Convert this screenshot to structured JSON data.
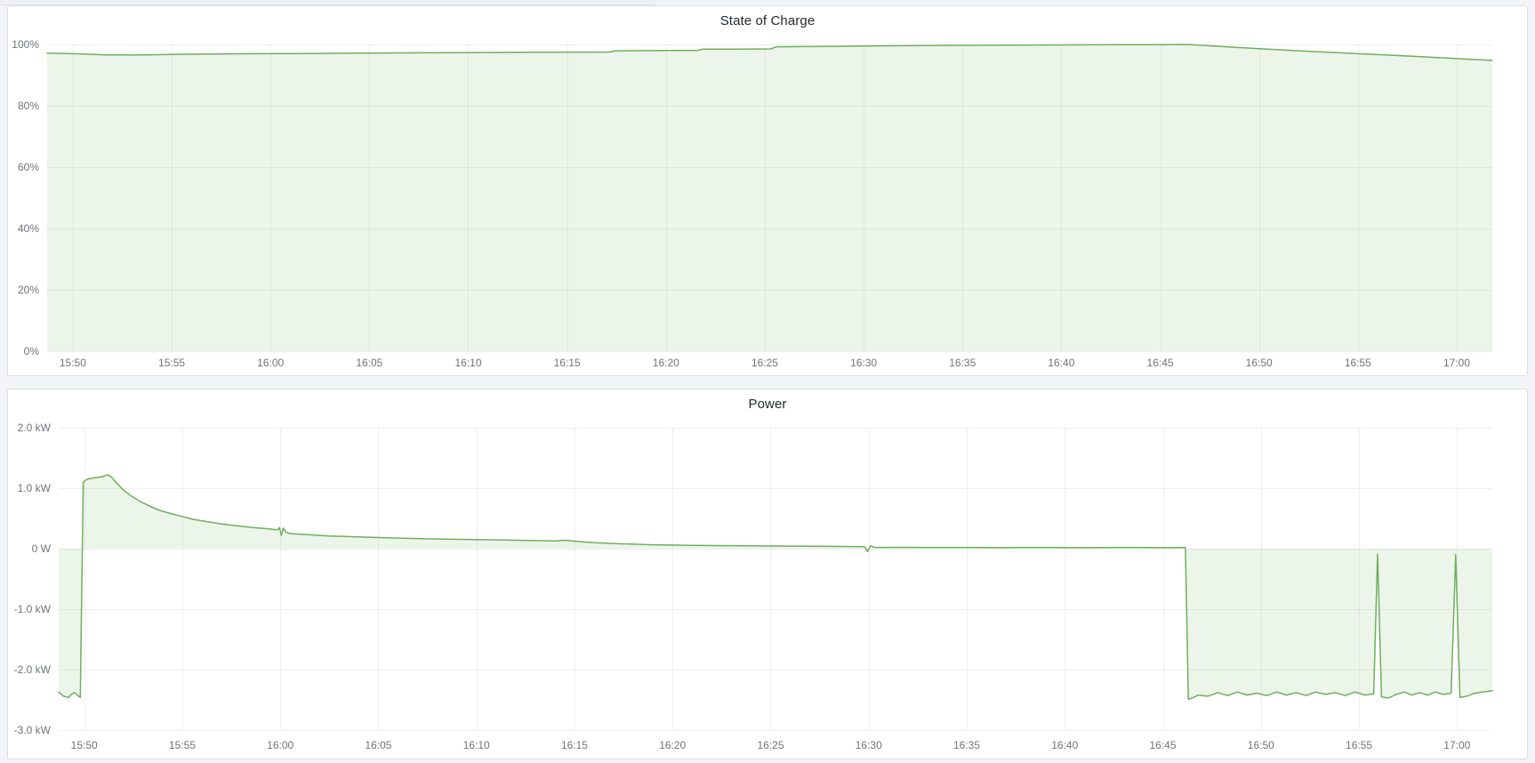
{
  "page": {
    "background": "#f3f4f8"
  },
  "panels": [
    {
      "title": "State of Charge"
    },
    {
      "title": "Power"
    }
  ],
  "chart_data": [
    {
      "type": "area",
      "title": "State of Charge",
      "xlabel": "",
      "ylabel": "",
      "unit": "%",
      "legend_position": "none",
      "grid": true,
      "line_color": "#6fae5f",
      "fill_color": "rgba(111,174,95,0.13)",
      "baseline": 0,
      "ylim": [
        0,
        100
      ],
      "y_ticks": [
        {
          "v": 100,
          "label": "100%"
        },
        {
          "v": 80,
          "label": "80%"
        },
        {
          "v": 60,
          "label": "60%"
        },
        {
          "v": 40,
          "label": "40%"
        },
        {
          "v": 20,
          "label": "20%"
        },
        {
          "v": 0,
          "label": "0%"
        }
      ],
      "x_domain_minutes": [
        3.7,
        76.8
      ],
      "x_ticks": [
        {
          "m": 5,
          "label": "15:50"
        },
        {
          "m": 10,
          "label": "15:55"
        },
        {
          "m": 15,
          "label": "16:00"
        },
        {
          "m": 20,
          "label": "16:05"
        },
        {
          "m": 25,
          "label": "16:10"
        },
        {
          "m": 30,
          "label": "16:15"
        },
        {
          "m": 35,
          "label": "16:20"
        },
        {
          "m": 40,
          "label": "16:25"
        },
        {
          "m": 45,
          "label": "16:30"
        },
        {
          "m": 50,
          "label": "16:35"
        },
        {
          "m": 55,
          "label": "16:40"
        },
        {
          "m": 60,
          "label": "16:45"
        },
        {
          "m": 65,
          "label": "16:50"
        },
        {
          "m": 70,
          "label": "16:55"
        },
        {
          "m": 75,
          "label": "17:00"
        }
      ],
      "series": [
        {
          "name": "State of Charge"
        }
      ],
      "points": [
        [
          3.7,
          97.2
        ],
        [
          5,
          97.0
        ],
        [
          5.8,
          96.8
        ],
        [
          6.8,
          96.6
        ],
        [
          8,
          96.55
        ],
        [
          9,
          96.65
        ],
        [
          10.5,
          96.8
        ],
        [
          12,
          96.9
        ],
        [
          14,
          97.0
        ],
        [
          16.5,
          97.05
        ],
        [
          19,
          97.15
        ],
        [
          21.5,
          97.25
        ],
        [
          24,
          97.3
        ],
        [
          26.5,
          97.4
        ],
        [
          28.5,
          97.45
        ],
        [
          30.5,
          97.5
        ],
        [
          32.2,
          97.55
        ],
        [
          32.45,
          97.95
        ],
        [
          34.5,
          98.0
        ],
        [
          36.6,
          98.05
        ],
        [
          36.85,
          98.45
        ],
        [
          38.5,
          98.5
        ],
        [
          40.3,
          98.55
        ],
        [
          40.6,
          99.25
        ],
        [
          42,
          99.3
        ],
        [
          43.5,
          99.4
        ],
        [
          45,
          99.5
        ],
        [
          47,
          99.6
        ],
        [
          49.5,
          99.7
        ],
        [
          52,
          99.78
        ],
        [
          55,
          99.85
        ],
        [
          58,
          99.9
        ],
        [
          60,
          99.95
        ],
        [
          61.2,
          100.0
        ],
        [
          61.6,
          99.9
        ],
        [
          63,
          99.4
        ],
        [
          65,
          98.6
        ],
        [
          67,
          97.95
        ],
        [
          69,
          97.3
        ],
        [
          71,
          96.7
        ],
        [
          73,
          96.1
        ],
        [
          75,
          95.4
        ],
        [
          76.8,
          94.8
        ]
      ]
    },
    {
      "type": "area",
      "title": "Power",
      "xlabel": "",
      "ylabel": "",
      "unit": "kW",
      "legend_position": "none",
      "grid": true,
      "line_color": "#6fae5f",
      "fill_color": "rgba(111,174,95,0.13)",
      "baseline": 0,
      "ylim": [
        -3,
        2
      ],
      "y_ticks": [
        {
          "v": 2,
          "label": "2.0 kW"
        },
        {
          "v": 1,
          "label": "1.0 kW"
        },
        {
          "v": 0,
          "label": "0 W"
        },
        {
          "v": -1,
          "label": "-1.0 kW"
        },
        {
          "v": -2,
          "label": "-2.0 kW"
        },
        {
          "v": -3,
          "label": "-3.0 kW"
        }
      ],
      "x_domain_minutes": [
        3.7,
        76.8
      ],
      "x_ticks": [
        {
          "m": 5,
          "label": "15:50"
        },
        {
          "m": 10,
          "label": "15:55"
        },
        {
          "m": 15,
          "label": "16:00"
        },
        {
          "m": 20,
          "label": "16:05"
        },
        {
          "m": 25,
          "label": "16:10"
        },
        {
          "m": 30,
          "label": "16:15"
        },
        {
          "m": 35,
          "label": "16:20"
        },
        {
          "m": 40,
          "label": "16:25"
        },
        {
          "m": 45,
          "label": "16:30"
        },
        {
          "m": 50,
          "label": "16:35"
        },
        {
          "m": 55,
          "label": "16:40"
        },
        {
          "m": 60,
          "label": "16:45"
        },
        {
          "m": 65,
          "label": "16:50"
        },
        {
          "m": 70,
          "label": "16:55"
        },
        {
          "m": 75,
          "label": "17:00"
        }
      ],
      "series": [
        {
          "name": "Power"
        }
      ],
      "points": [
        [
          3.7,
          -2.37
        ],
        [
          3.95,
          -2.44
        ],
        [
          4.2,
          -2.46
        ],
        [
          4.35,
          -2.41
        ],
        [
          4.5,
          -2.38
        ],
        [
          4.65,
          -2.42
        ],
        [
          4.8,
          -2.46
        ],
        [
          4.95,
          1.1
        ],
        [
          5.15,
          1.15
        ],
        [
          5.5,
          1.17
        ],
        [
          5.9,
          1.19
        ],
        [
          6.2,
          1.22
        ],
        [
          6.35,
          1.2
        ],
        [
          6.7,
          1.07
        ],
        [
          7.0,
          0.97
        ],
        [
          7.4,
          0.87
        ],
        [
          7.8,
          0.79
        ],
        [
          8.3,
          0.71
        ],
        [
          8.8,
          0.64
        ],
        [
          9.3,
          0.59
        ],
        [
          9.9,
          0.54
        ],
        [
          10.5,
          0.49
        ],
        [
          11.2,
          0.45
        ],
        [
          12.0,
          0.41
        ],
        [
          12.8,
          0.38
        ],
        [
          13.6,
          0.35
        ],
        [
          14.4,
          0.33
        ],
        [
          14.85,
          0.31
        ],
        [
          14.95,
          0.35
        ],
        [
          15.05,
          0.22
        ],
        [
          15.15,
          0.34
        ],
        [
          15.3,
          0.27
        ],
        [
          15.5,
          0.25
        ],
        [
          16.5,
          0.23
        ],
        [
          17.5,
          0.21
        ],
        [
          18.5,
          0.2
        ],
        [
          19.5,
          0.19
        ],
        [
          21,
          0.175
        ],
        [
          23,
          0.16
        ],
        [
          25,
          0.15
        ],
        [
          27,
          0.14
        ],
        [
          29,
          0.13
        ],
        [
          29.6,
          0.14
        ],
        [
          30.1,
          0.12
        ],
        [
          31,
          0.1
        ],
        [
          32,
          0.085
        ],
        [
          33,
          0.075
        ],
        [
          34,
          0.065
        ],
        [
          35.5,
          0.058
        ],
        [
          37,
          0.052
        ],
        [
          39,
          0.047
        ],
        [
          41,
          0.042
        ],
        [
          43,
          0.038
        ],
        [
          44.8,
          0.032
        ],
        [
          44.95,
          -0.05
        ],
        [
          45.1,
          0.05
        ],
        [
          45.3,
          0.02
        ],
        [
          46.5,
          0.022
        ],
        [
          48,
          0.02
        ],
        [
          50,
          0.02
        ],
        [
          52,
          0.019
        ],
        [
          54,
          0.02
        ],
        [
          56,
          0.018
        ],
        [
          58,
          0.02
        ],
        [
          60,
          0.019
        ],
        [
          61.15,
          0.02
        ],
        [
          61.3,
          -2.49
        ],
        [
          61.5,
          -2.47
        ],
        [
          61.8,
          -2.42
        ],
        [
          62.3,
          -2.44
        ],
        [
          62.8,
          -2.38
        ],
        [
          63.3,
          -2.43
        ],
        [
          63.8,
          -2.37
        ],
        [
          64.3,
          -2.42
        ],
        [
          64.8,
          -2.39
        ],
        [
          65.3,
          -2.43
        ],
        [
          65.8,
          -2.37
        ],
        [
          66.3,
          -2.42
        ],
        [
          66.8,
          -2.38
        ],
        [
          67.3,
          -2.43
        ],
        [
          67.8,
          -2.37
        ],
        [
          68.3,
          -2.41
        ],
        [
          68.8,
          -2.38
        ],
        [
          69.3,
          -2.43
        ],
        [
          69.8,
          -2.37
        ],
        [
          70.3,
          -2.42
        ],
        [
          70.75,
          -2.4
        ],
        [
          70.95,
          -0.09
        ],
        [
          71.15,
          -2.45
        ],
        [
          71.5,
          -2.47
        ],
        [
          71.9,
          -2.41
        ],
        [
          72.3,
          -2.37
        ],
        [
          72.7,
          -2.42
        ],
        [
          73.1,
          -2.38
        ],
        [
          73.5,
          -2.42
        ],
        [
          73.9,
          -2.37
        ],
        [
          74.3,
          -2.41
        ],
        [
          74.7,
          -2.39
        ],
        [
          74.93,
          -0.1
        ],
        [
          75.15,
          -2.46
        ],
        [
          75.5,
          -2.44
        ],
        [
          75.9,
          -2.39
        ],
        [
          76.3,
          -2.37
        ],
        [
          76.8,
          -2.35
        ]
      ]
    }
  ]
}
